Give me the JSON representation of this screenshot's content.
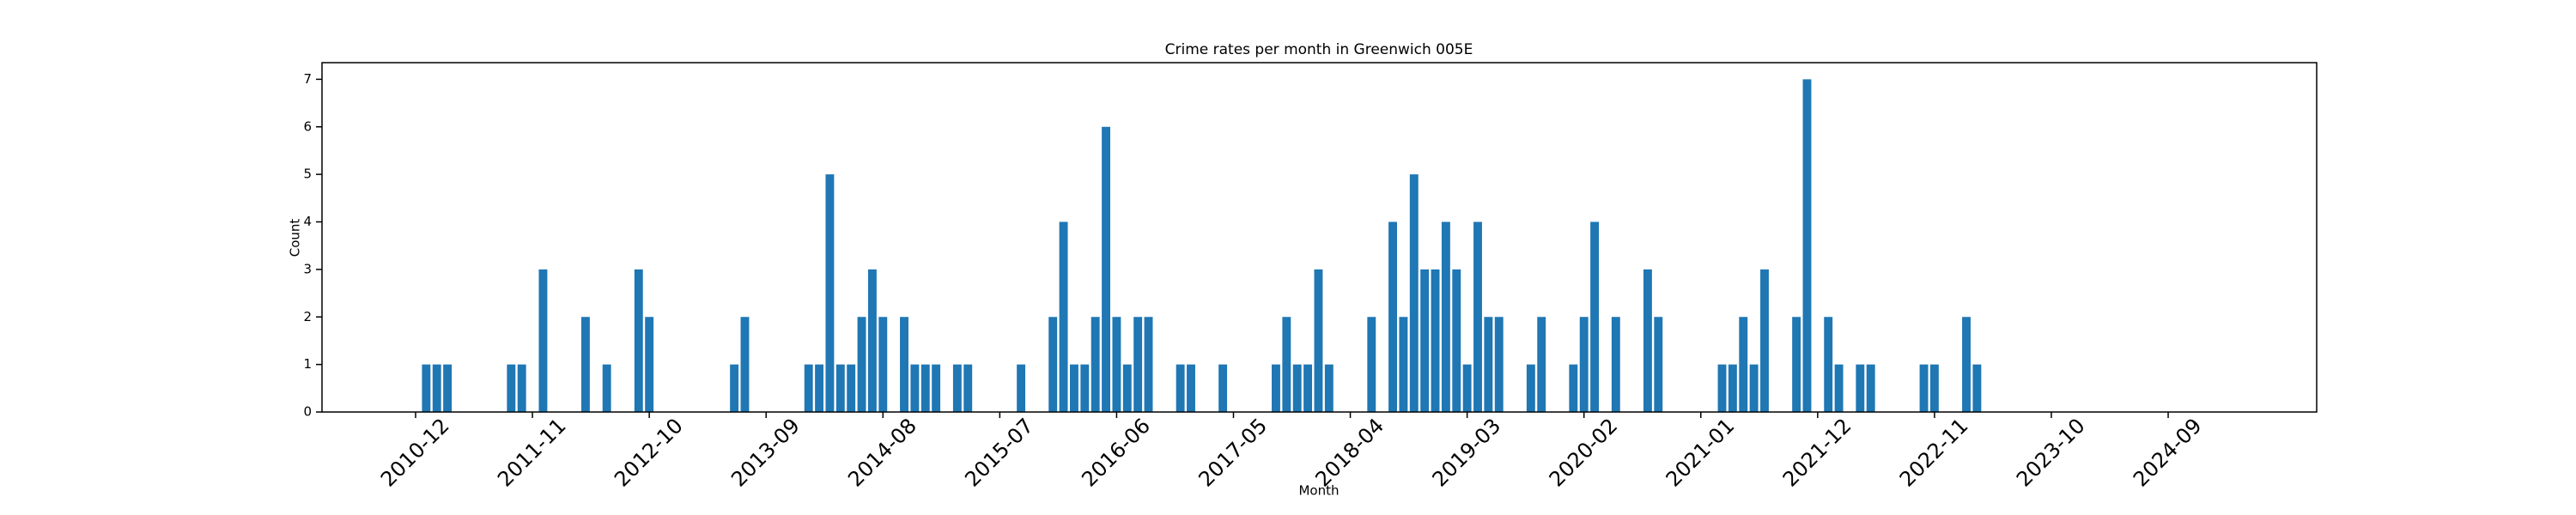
{
  "chart_data": {
    "type": "bar",
    "title": "Crime rates per month in Greenwich 005E",
    "x_label": "Month",
    "y_label": "Count",
    "color": "#1f77b4",
    "categories": [
      "2010-12",
      null,
      null,
      null,
      null,
      null,
      null,
      null,
      null,
      null,
      null,
      "2011-11",
      null,
      null,
      null,
      null,
      null,
      null,
      null,
      null,
      null,
      null,
      "2012-10",
      null,
      null,
      null,
      null,
      null,
      null,
      null,
      null,
      null,
      null,
      "2013-09",
      null,
      null,
      null,
      null,
      null,
      null,
      null,
      null,
      null,
      null,
      "2014-08",
      null,
      null,
      null,
      null,
      null,
      null,
      null,
      null,
      null,
      null,
      "2015-07",
      null,
      null,
      null,
      null,
      null,
      null,
      null,
      null,
      null,
      null,
      "2016-06",
      null,
      null,
      null,
      null,
      null,
      null,
      null,
      null,
      null,
      null,
      "2017-05",
      null,
      null,
      null,
      null,
      null,
      null,
      null,
      null,
      null,
      null,
      "2018-04",
      null,
      null,
      null,
      null,
      null,
      null,
      null,
      null,
      null,
      null,
      "2019-03",
      null,
      null,
      null,
      null,
      null,
      null,
      null,
      null,
      null,
      null,
      "2020-02",
      null,
      null,
      null,
      null,
      null,
      null,
      null,
      null,
      null,
      null,
      "2021-01",
      null,
      null,
      null,
      null,
      null,
      null,
      null,
      null,
      null,
      null,
      "2021-12",
      null,
      null,
      null,
      null,
      null,
      null,
      null,
      null,
      null,
      null,
      "2022-11",
      null,
      null,
      null,
      null,
      null,
      null,
      null,
      null,
      null,
      null,
      "2023-10",
      null,
      null,
      null,
      null,
      null,
      null,
      null,
      null,
      null,
      null,
      "2024-09",
      null,
      null,
      null,
      null
    ],
    "values": [
      0,
      1,
      1,
      1,
      0,
      0,
      0,
      0,
      0,
      1,
      1,
      0,
      3,
      0,
      0,
      0,
      2,
      0,
      1,
      0,
      0,
      3,
      2,
      0,
      0,
      0,
      0,
      0,
      0,
      0,
      1,
      2,
      0,
      0,
      0,
      0,
      0,
      1,
      1,
      5,
      1,
      1,
      2,
      3,
      2,
      0,
      2,
      1,
      1,
      1,
      0,
      1,
      1,
      0,
      0,
      0,
      0,
      1,
      0,
      0,
      2,
      4,
      1,
      1,
      2,
      6,
      2,
      1,
      2,
      2,
      0,
      0,
      1,
      1,
      0,
      0,
      1,
      0,
      0,
      0,
      0,
      1,
      2,
      1,
      1,
      3,
      1,
      0,
      0,
      0,
      2,
      0,
      4,
      2,
      5,
      3,
      3,
      4,
      3,
      1,
      4,
      2,
      2,
      0,
      0,
      1,
      2,
      0,
      0,
      1,
      2,
      4,
      0,
      2,
      0,
      0,
      3,
      2,
      0,
      0,
      0,
      0,
      0,
      1,
      1,
      2,
      1,
      3,
      0,
      0,
      2,
      7,
      0,
      2,
      1,
      0,
      1,
      1,
      0,
      0,
      0,
      0,
      1,
      1,
      0,
      0,
      2,
      1,
      0,
      0,
      0,
      0,
      0,
      0,
      0,
      0,
      0,
      0,
      0,
      0,
      0,
      0,
      0,
      0,
      0,
      0,
      0,
      0,
      0,
      0
    ],
    "ylim": [
      0,
      7.35
    ],
    "yticks": [
      0,
      1,
      2,
      3,
      4,
      5,
      6,
      7
    ],
    "grid": false
  }
}
